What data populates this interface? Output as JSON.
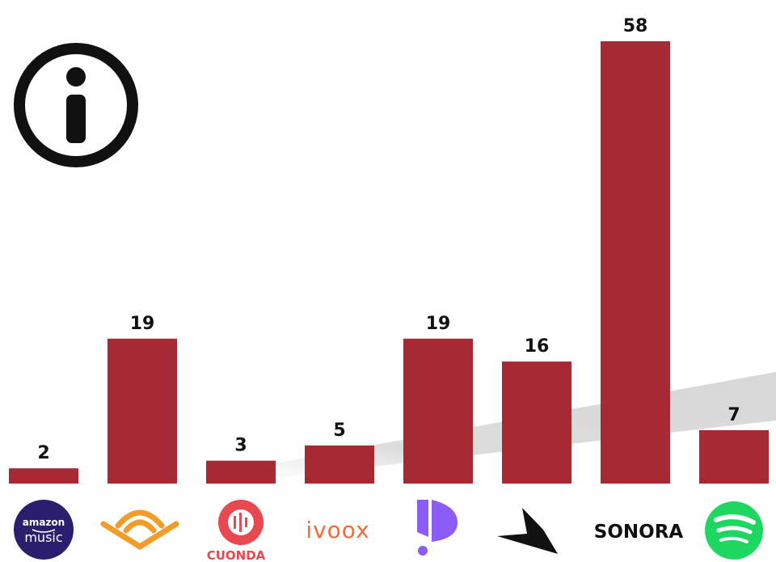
{
  "chart_data": {
    "type": "bar",
    "categories": [
      "amazon music",
      "Audible",
      "CUONDA",
      "ivoox",
      "Podimo",
      "Podium",
      "SONORA",
      "Spotify"
    ],
    "values": [
      2,
      19,
      3,
      5,
      19,
      16,
      58,
      7
    ],
    "title": "",
    "xlabel": "",
    "ylabel": "",
    "ylim": [
      0,
      58
    ],
    "grid": false,
    "legend": "none"
  },
  "colors": {
    "bar": "#a52a34",
    "amazon_bg": "#2b1e6e",
    "audible": "#f39c2b",
    "cuonda": "#e8484f",
    "ivoox": "#f26b3a",
    "podimo": "#8b5cf6",
    "spotify": "#1ed760",
    "info_icon": "#111111"
  },
  "icons": {
    "info": "info-circle-icon"
  },
  "logos": {
    "amazon_line1": "amazon",
    "amazon_line2": "music",
    "cuonda": "CUONDA",
    "ivoox": "ivoox",
    "sonora": "SONORA"
  }
}
